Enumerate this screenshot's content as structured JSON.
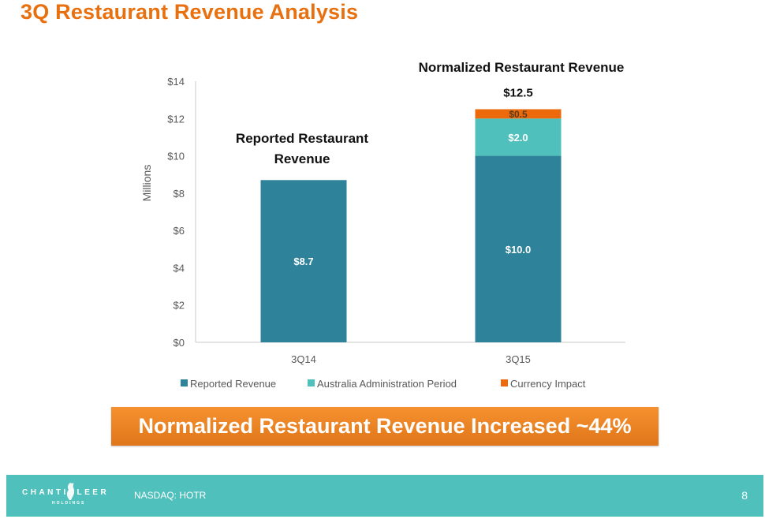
{
  "slide": {
    "title": "3Q Restaurant Revenue Analysis",
    "callout": "Normalized Restaurant Revenue Increased ~44%",
    "footer": {
      "logo_text": "CHANTICLEER",
      "logo_subtext": "HOLDINGS",
      "ticker": "NASDAQ: HOTR",
      "page_number": "8"
    }
  },
  "colors": {
    "title": "#e8700f",
    "reported": "#2e8299",
    "australia": "#4fc0bb",
    "currency": "#ec6a0c",
    "footer": "#4fc0bb",
    "callout": "#f08a25"
  },
  "chart_data": {
    "type": "bar",
    "stacked": true,
    "title": "",
    "xlabel": "",
    "ylabel": "Millions",
    "ylim": [
      0,
      14
    ],
    "yticks": [
      0,
      2,
      4,
      6,
      8,
      10,
      12,
      14
    ],
    "ytick_labels": [
      "$0",
      "$2",
      "$4",
      "$6",
      "$8",
      "$10",
      "$12",
      "$14"
    ],
    "categories": [
      "3Q14",
      "3Q15"
    ],
    "series": [
      {
        "name": "Reported Revenue",
        "values": [
          8.7,
          10.0
        ],
        "labels": [
          "$8.7",
          "$10.0"
        ],
        "color": "#2e8299"
      },
      {
        "name": "Australia Administration Period",
        "values": [
          0,
          2.0
        ],
        "labels": [
          "",
          "$2.0"
        ],
        "color": "#4fc0bb"
      },
      {
        "name": "Currency Impact",
        "values": [
          0,
          0.5
        ],
        "labels": [
          "",
          "$0.5"
        ],
        "color": "#ec6a0c"
      }
    ],
    "totals": [
      "",
      "$12.5"
    ],
    "annotations": [
      {
        "category": "3Q14",
        "text": [
          "Reported Restaurant",
          "Revenue"
        ]
      },
      {
        "category": "3Q15",
        "text": [
          "Normalized Restaurant Revenue"
        ]
      }
    ],
    "legend_position": "bottom",
    "grid": false
  }
}
